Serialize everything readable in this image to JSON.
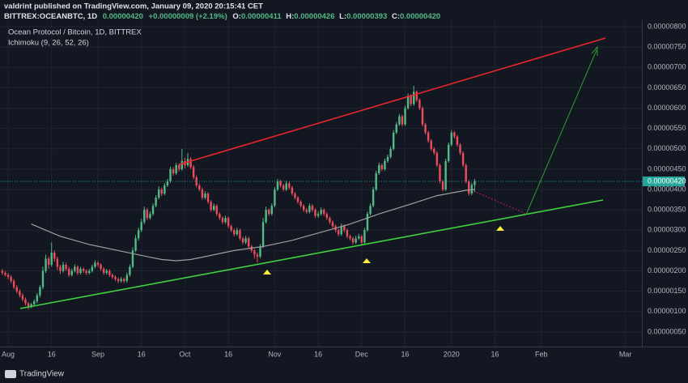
{
  "header": {
    "published": "valdrint published on TradingView.com, January 09, 2020 20:15:41 CET",
    "symbol": "BITTREX:OCEANBTC, 1D",
    "last": "0.00000420",
    "change": "+0.00000009 (+2.19%)",
    "ohlc": [
      {
        "label": "O:",
        "value": "0.00000411"
      },
      {
        "label": "H:",
        "value": "0.00000426"
      },
      {
        "label": "L:",
        "value": "0.00000393"
      },
      {
        "label": "C:",
        "value": "0.00000420"
      }
    ]
  },
  "footer": {
    "brand": "TradingView"
  },
  "chart_data": {
    "type": "candlestick",
    "title": "Ocean Protocol / Bitcoin, 1D, BITTREX",
    "indicator": "Ichimoku (9, 26, 52, 26)",
    "up_color": "#53b987",
    "down_color": "#eb4d5c",
    "grid": true,
    "last_price": {
      "value": 4.2e-06,
      "label": "0.00000420"
    },
    "xlim": [
      -0.8,
      220.7
    ],
    "xticks": [
      {
        "value": 2,
        "label": "Aug"
      },
      {
        "value": 17,
        "label": "16"
      },
      {
        "value": 33,
        "label": "Sep"
      },
      {
        "value": 48,
        "label": "16"
      },
      {
        "value": 63,
        "label": "Oct"
      },
      {
        "value": 78,
        "label": "16"
      },
      {
        "value": 94,
        "label": "Nov"
      },
      {
        "value": 109,
        "label": "16"
      },
      {
        "value": 124,
        "label": "Dec"
      },
      {
        "value": 139,
        "label": "16"
      },
      {
        "value": 155,
        "label": "2020"
      },
      {
        "value": 170,
        "label": "16"
      },
      {
        "value": 186,
        "label": "Feb"
      },
      {
        "value": 215,
        "label": "Mar"
      }
    ],
    "ylim": [
      1.4e-07,
      8.16e-06
    ],
    "yticks": [
      {
        "value": 5e-07,
        "label": "0.00000050"
      },
      {
        "value": 1e-06,
        "label": "0.00000100"
      },
      {
        "value": 1.5e-06,
        "label": "0.00000150"
      },
      {
        "value": 2e-06,
        "label": "0.00000200"
      },
      {
        "value": 2.5e-06,
        "label": "0.00000250"
      },
      {
        "value": 3e-06,
        "label": "0.00000300"
      },
      {
        "value": 3.5e-06,
        "label": "0.00000350"
      },
      {
        "value": 4e-06,
        "label": "0.00000400"
      },
      {
        "value": 4.5e-06,
        "label": "0.00000450"
      },
      {
        "value": 5e-06,
        "label": "0.00000500"
      },
      {
        "value": 5.5e-06,
        "label": "0.00000550"
      },
      {
        "value": 6e-06,
        "label": "0.00000600"
      },
      {
        "value": 6.5e-06,
        "label": "0.00000650"
      },
      {
        "value": 7e-06,
        "label": "0.00000700"
      },
      {
        "value": 7.5e-06,
        "label": "0.00000750"
      },
      {
        "value": 8e-06,
        "label": "0.00000800"
      }
    ],
    "candles": [
      [
        2e-06,
        2.05e-06,
        1.9e-06,
        1.95e-06
      ],
      [
        1.95e-06,
        2e-06,
        1.86e-06,
        1.9e-06
      ],
      [
        1.9e-06,
        1.95e-06,
        1.8e-06,
        1.85e-06
      ],
      [
        1.85e-06,
        1.9e-06,
        1.7e-06,
        1.75e-06
      ],
      [
        1.75e-06,
        1.8e-06,
        1.55e-06,
        1.6e-06
      ],
      [
        1.6e-06,
        1.65e-06,
        1.45e-06,
        1.5e-06
      ],
      [
        1.5e-06,
        1.55e-06,
        1.35e-06,
        1.4e-06
      ],
      [
        1.4e-06,
        1.45e-06,
        1.25e-06,
        1.3e-06
      ],
      [
        1.3e-06,
        1.35e-06,
        1.15e-06,
        1.2e-06
      ],
      [
        1.2e-06,
        1.24e-06,
        1.05e-06,
        1.12e-06
      ],
      [
        1.12e-06,
        1.22e-06,
        1.08e-06,
        1.18e-06
      ],
      [
        1.18e-06,
        1.3e-06,
        1.14e-06,
        1.25e-06
      ],
      [
        1.25e-06,
        1.45e-06,
        1.2e-06,
        1.4e-06
      ],
      [
        1.4e-06,
        1.65e-06,
        1.35e-06,
        1.6e-06
      ],
      [
        1.6e-06,
        2.1e-06,
        1.55e-06,
        2e-06
      ],
      [
        2e-06,
        2.4e-06,
        1.95e-06,
        2.3e-06
      ],
      [
        2.3e-06,
        2.35e-06,
        2.05e-06,
        2.15e-06
      ],
      [
        2.15e-06,
        2.7e-06,
        2.1e-06,
        2.45e-06
      ],
      [
        2.45e-06,
        2.5e-06,
        2.22e-06,
        2.3e-06
      ],
      [
        2.3e-06,
        2.35e-06,
        2.02e-06,
        2.1e-06
      ],
      [
        2.1e-06,
        2.15e-06,
        1.92e-06,
        2e-06
      ],
      [
        2e-06,
        2.22e-06,
        1.96e-06,
        2.15e-06
      ],
      [
        2.15e-06,
        2.2e-06,
        2e-06,
        2.05e-06
      ],
      [
        2.05e-06,
        2.1e-06,
        1.85e-06,
        1.9e-06
      ],
      [
        1.9e-06,
        2.06e-06,
        1.86e-06,
        2e-06
      ],
      [
        2e-06,
        2.16e-06,
        1.96e-06,
        2.1e-06
      ],
      [
        2.1e-06,
        2.14e-06,
        1.9e-06,
        1.95e-06
      ],
      [
        1.95e-06,
        2.1e-06,
        1.91e-06,
        2.05e-06
      ],
      [
        2.05e-06,
        2.09e-06,
        1.95e-06,
        2e-06
      ],
      [
        2e-06,
        2.04e-06,
        1.9e-06,
        1.95e-06
      ],
      [
        1.95e-06,
        2.05e-06,
        1.91e-06,
        2e-06
      ],
      [
        2e-06,
        2.15e-06,
        1.96e-06,
        2.1e-06
      ],
      [
        2.1e-06,
        2.26e-06,
        2.06e-06,
        2.2e-06
      ],
      [
        2.2e-06,
        2.24e-06,
        2.1e-06,
        2.15e-06
      ],
      [
        2.15e-06,
        2.19e-06,
        2e-06,
        2.05e-06
      ],
      [
        2.05e-06,
        2.09e-06,
        1.9e-06,
        1.95e-06
      ],
      [
        1.95e-06,
        2.05e-06,
        1.91e-06,
        2e-06
      ],
      [
        2e-06,
        2.04e-06,
        1.85e-06,
        1.9e-06
      ],
      [
        1.9e-06,
        1.94e-06,
        1.8e-06,
        1.85e-06
      ],
      [
        1.85e-06,
        1.89e-06,
        1.75e-06,
        1.8e-06
      ],
      [
        1.8e-06,
        1.84e-06,
        1.7e-06,
        1.75e-06
      ],
      [
        1.75e-06,
        1.85e-06,
        1.71e-06,
        1.8e-06
      ],
      [
        1.8e-06,
        1.84e-06,
        1.7e-06,
        1.75e-06
      ],
      [
        1.75e-06,
        1.96e-06,
        1.71e-06,
        1.9e-06
      ],
      [
        1.9e-06,
        2.16e-06,
        1.86e-06,
        2.1e-06
      ],
      [
        2.1e-06,
        2.58e-06,
        2.06e-06,
        2.5e-06
      ],
      [
        2.5e-06,
        2.88e-06,
        2.46e-06,
        2.8e-06
      ],
      [
        2.8e-06,
        3.06e-06,
        2.74e-06,
        3e-06
      ],
      [
        3e-06,
        3.28e-06,
        2.95e-06,
        3.2e-06
      ],
      [
        3.2e-06,
        3.58e-06,
        3.15e-06,
        3.5e-06
      ],
      [
        3.5e-06,
        3.55e-06,
        3.25e-06,
        3.3e-06
      ],
      [
        3.3e-06,
        3.46e-06,
        3.26e-06,
        3.4e-06
      ],
      [
        3.4e-06,
        3.66e-06,
        3.36e-06,
        3.6e-06
      ],
      [
        3.6e-06,
        3.86e-06,
        3.56e-06,
        3.8e-06
      ],
      [
        3.8e-06,
        4.08e-06,
        3.76e-06,
        4e-06
      ],
      [
        4e-06,
        4.05e-06,
        3.84e-06,
        3.9e-06
      ],
      [
        3.9e-06,
        4.16e-06,
        3.86e-06,
        4.1e-06
      ],
      [
        4.1e-06,
        4.26e-06,
        4.06e-06,
        4.2e-06
      ],
      [
        4.2e-06,
        4.56e-06,
        4.16e-06,
        4.5e-06
      ],
      [
        4.5e-06,
        4.55e-06,
        4.34e-06,
        4.4e-06
      ],
      [
        4.4e-06,
        4.66e-06,
        4.36e-06,
        4.6e-06
      ],
      [
        4.6e-06,
        4.65e-06,
        4.44e-06,
        4.5e-06
      ],
      [
        4.5e-06,
        5e-06,
        4.46e-06,
        4.7e-06
      ],
      [
        4.7e-06,
        4.78e-06,
        4.52e-06,
        4.6e-06
      ],
      [
        4.6e-06,
        4.9e-06,
        4.56e-06,
        4.75e-06
      ],
      [
        4.75e-06,
        4.8e-06,
        4.5e-06,
        4.55e-06
      ],
      [
        4.55e-06,
        4.6e-06,
        4.25e-06,
        4.3e-06
      ],
      [
        4.3e-06,
        4.35e-06,
        4.05e-06,
        4.1e-06
      ],
      [
        4.1e-06,
        4.15e-06,
        3.95e-06,
        4e-06
      ],
      [
        4e-06,
        4.05e-06,
        3.75e-06,
        3.8e-06
      ],
      [
        3.8e-06,
        3.96e-06,
        3.76e-06,
        3.9e-06
      ],
      [
        3.9e-06,
        3.94e-06,
        3.65e-06,
        3.7e-06
      ],
      [
        3.7e-06,
        3.74e-06,
        3.45e-06,
        3.5e-06
      ],
      [
        3.5e-06,
        3.66e-06,
        3.46e-06,
        3.6e-06
      ],
      [
        3.6e-06,
        3.64e-06,
        3.35e-06,
        3.4e-06
      ],
      [
        3.4e-06,
        3.44e-06,
        3.25e-06,
        3.3e-06
      ],
      [
        3.3e-06,
        3.34e-06,
        3.15e-06,
        3.2e-06
      ],
      [
        3.2e-06,
        3.36e-06,
        3.16e-06,
        3.3e-06
      ],
      [
        3.3e-06,
        3.34e-06,
        3.05e-06,
        3.1e-06
      ],
      [
        3.1e-06,
        3.14e-06,
        2.95e-06,
        3e-06
      ],
      [
        3e-06,
        3.04e-06,
        2.85e-06,
        2.9e-06
      ],
      [
        2.9e-06,
        3.06e-06,
        2.86e-06,
        3e-06
      ],
      [
        3e-06,
        3.04e-06,
        2.75e-06,
        2.8e-06
      ],
      [
        2.8e-06,
        2.84e-06,
        2.65e-06,
        2.7e-06
      ],
      [
        2.7e-06,
        2.86e-06,
        2.66e-06,
        2.8e-06
      ],
      [
        2.8e-06,
        2.84e-06,
        2.55e-06,
        2.6e-06
      ],
      [
        2.6e-06,
        2.64e-06,
        2.45e-06,
        2.5e-06
      ],
      [
        2.5e-06,
        2.54e-06,
        2.3e-06,
        2.4e-06
      ],
      [
        2.4e-06,
        2.45e-06,
        2.2e-06,
        2.35e-06
      ],
      [
        2.35e-06,
        2.66e-06,
        2.31e-06,
        2.6e-06
      ],
      [
        2.6e-06,
        3.3e-06,
        2.56e-06,
        3.2e-06
      ],
      [
        3.2e-06,
        3.58e-06,
        3.16e-06,
        3.5e-06
      ],
      [
        3.5e-06,
        3.54e-06,
        3.35e-06,
        3.4e-06
      ],
      [
        3.4e-06,
        3.66e-06,
        3.36e-06,
        3.6e-06
      ],
      [
        3.6e-06,
        4.06e-06,
        3.56e-06,
        4e-06
      ],
      [
        4e-06,
        4.26e-06,
        3.96e-06,
        4.2e-06
      ],
      [
        4.2e-06,
        4.24e-06,
        4.05e-06,
        4.1e-06
      ],
      [
        4.1e-06,
        4.14e-06,
        3.95e-06,
        4e-06
      ],
      [
        4e-06,
        4.21e-06,
        3.96e-06,
        4.15e-06
      ],
      [
        4.15e-06,
        4.19e-06,
        4e-06,
        4.05e-06
      ],
      [
        4.05e-06,
        4.09e-06,
        3.85e-06,
        3.9e-06
      ],
      [
        3.9e-06,
        3.94e-06,
        3.75e-06,
        3.8e-06
      ],
      [
        3.8e-06,
        3.84e-06,
        3.65e-06,
        3.7e-06
      ],
      [
        3.7e-06,
        3.74e-06,
        3.55e-06,
        3.6e-06
      ],
      [
        3.6e-06,
        3.64e-06,
        3.45e-06,
        3.5e-06
      ],
      [
        3.5e-06,
        3.54e-06,
        3.4e-06,
        3.45e-06
      ],
      [
        3.45e-06,
        3.66e-06,
        3.41e-06,
        3.6e-06
      ],
      [
        3.6e-06,
        3.64e-06,
        3.45e-06,
        3.5e-06
      ],
      [
        3.5e-06,
        3.54e-06,
        3.3e-06,
        3.35e-06
      ],
      [
        3.35e-06,
        3.46e-06,
        3.31e-06,
        3.4e-06
      ],
      [
        3.4e-06,
        3.56e-06,
        3.36e-06,
        3.5e-06
      ],
      [
        3.5e-06,
        3.54e-06,
        3.35e-06,
        3.4e-06
      ],
      [
        3.4e-06,
        3.44e-06,
        3.25e-06,
        3.3e-06
      ],
      [
        3.3e-06,
        3.34e-06,
        3.15e-06,
        3.2e-06
      ],
      [
        3.2e-06,
        3.24e-06,
        3.05e-06,
        3.1e-06
      ],
      [
        3.1e-06,
        3.14e-06,
        2.95e-06,
        3e-06
      ],
      [
        3e-06,
        3.04e-06,
        2.85e-06,
        2.9e-06
      ],
      [
        2.9e-06,
        3.16e-06,
        2.86e-06,
        3.1e-06
      ],
      [
        3.1e-06,
        3.14e-06,
        2.95e-06,
        3e-06
      ],
      [
        3e-06,
        3.04e-06,
        2.8e-06,
        2.85e-06
      ],
      [
        2.85e-06,
        2.89e-06,
        2.75e-06,
        2.8e-06
      ],
      [
        2.8e-06,
        2.84e-06,
        2.65e-06,
        2.7e-06
      ],
      [
        2.7e-06,
        2.86e-06,
        2.66e-06,
        2.8e-06
      ],
      [
        2.8e-06,
        2.91e-06,
        2.76e-06,
        2.85e-06
      ],
      [
        2.85e-06,
        2.89e-06,
        2.62e-06,
        2.7e-06
      ],
      [
        2.7e-06,
        3.06e-06,
        2.66e-06,
        3e-06
      ],
      [
        3e-06,
        3.46e-06,
        2.96e-06,
        3.4e-06
      ],
      [
        3.4e-06,
        3.66e-06,
        3.36e-06,
        3.6e-06
      ],
      [
        3.6e-06,
        4.06e-06,
        3.56e-06,
        4e-06
      ],
      [
        4e-06,
        4.46e-06,
        3.96e-06,
        4.4e-06
      ],
      [
        4.4e-06,
        4.66e-06,
        4.36e-06,
        4.6e-06
      ],
      [
        4.6e-06,
        4.64e-06,
        4.45e-06,
        4.5e-06
      ],
      [
        4.5e-06,
        4.76e-06,
        4.46e-06,
        4.7e-06
      ],
      [
        4.7e-06,
        4.86e-06,
        4.66e-06,
        4.8e-06
      ],
      [
        4.8e-06,
        5.06e-06,
        4.76e-06,
        5e-06
      ],
      [
        5e-06,
        5.46e-06,
        4.96e-06,
        5.4e-06
      ],
      [
        5.4e-06,
        5.66e-06,
        5.36e-06,
        5.6e-06
      ],
      [
        5.6e-06,
        5.86e-06,
        5.56e-06,
        5.8e-06
      ],
      [
        5.8e-06,
        5.84e-06,
        5.55e-06,
        5.6e-06
      ],
      [
        5.6e-06,
        6.06e-06,
        5.56e-06,
        6e-06
      ],
      [
        6e-06,
        6.36e-06,
        5.96e-06,
        6.3e-06
      ],
      [
        6.3e-06,
        6.34e-06,
        6.05e-06,
        6.1e-06
      ],
      [
        6.1e-06,
        6.55e-06,
        6.06e-06,
        6.4e-06
      ],
      [
        6.4e-06,
        6.44e-06,
        6.15e-06,
        6.2e-06
      ],
      [
        6.2e-06,
        6.24e-06,
        5.95e-06,
        6e-06
      ],
      [
        6e-06,
        6.04e-06,
        5.55e-06,
        5.6e-06
      ],
      [
        5.6e-06,
        5.64e-06,
        5.35e-06,
        5.4e-06
      ],
      [
        5.4e-06,
        5.44e-06,
        5.15e-06,
        5.2e-06
      ],
      [
        5.2e-06,
        5.24e-06,
        4.95e-06,
        5e-06
      ],
      [
        5e-06,
        5.04e-06,
        4.85e-06,
        4.9e-06
      ],
      [
        4.9e-06,
        4.94e-06,
        4.55e-06,
        4.6e-06
      ],
      [
        4.6e-06,
        4.64e-06,
        4.15e-06,
        4.2e-06
      ],
      [
        4.2e-06,
        4.24e-06,
        3.95e-06,
        4e-06
      ],
      [
        4e-06,
        4.76e-06,
        3.96e-06,
        4.7e-06
      ],
      [
        4.7e-06,
        5.16e-06,
        4.66e-06,
        5.1e-06
      ],
      [
        5.1e-06,
        5.46e-06,
        5.06e-06,
        5.4e-06
      ],
      [
        5.4e-06,
        5.44e-06,
        5.25e-06,
        5.3e-06
      ],
      [
        5.3e-06,
        5.34e-06,
        5.05e-06,
        5.1e-06
      ],
      [
        5.1e-06,
        5.14e-06,
        4.85e-06,
        4.9e-06
      ],
      [
        4.9e-06,
        4.94e-06,
        4.55e-06,
        4.6e-06
      ],
      [
        4.6e-06,
        4.64e-06,
        4.15e-06,
        4.2e-06
      ],
      [
        4.2e-06,
        4.24e-06,
        3.85e-06,
        3.9e-06
      ],
      [
        3.9e-06,
        4.16e-06,
        3.86e-06,
        4.11e-06
      ],
      [
        4.11e-06,
        4.26e-06,
        3.93e-06,
        4.2e-06
      ]
    ],
    "line": {
      "color": "#9e9e9e",
      "x": [
        10,
        15,
        20,
        30,
        40,
        50,
        55,
        60,
        65,
        70,
        80,
        90,
        100,
        110,
        120,
        130,
        140,
        150,
        160,
        163
      ],
      "values": [
        3.15e-06,
        3e-06,
        2.85e-06,
        2.65e-06,
        2.5e-06,
        2.35e-06,
        2.28e-06,
        2.25e-06,
        2.28e-06,
        2.35e-06,
        2.5e-06,
        2.6e-06,
        2.75e-06,
        2.95e-06,
        3.15e-06,
        3.4e-06,
        3.62e-06,
        3.85e-06,
        3.98e-06,
        4e-06
      ]
    }
  }
}
